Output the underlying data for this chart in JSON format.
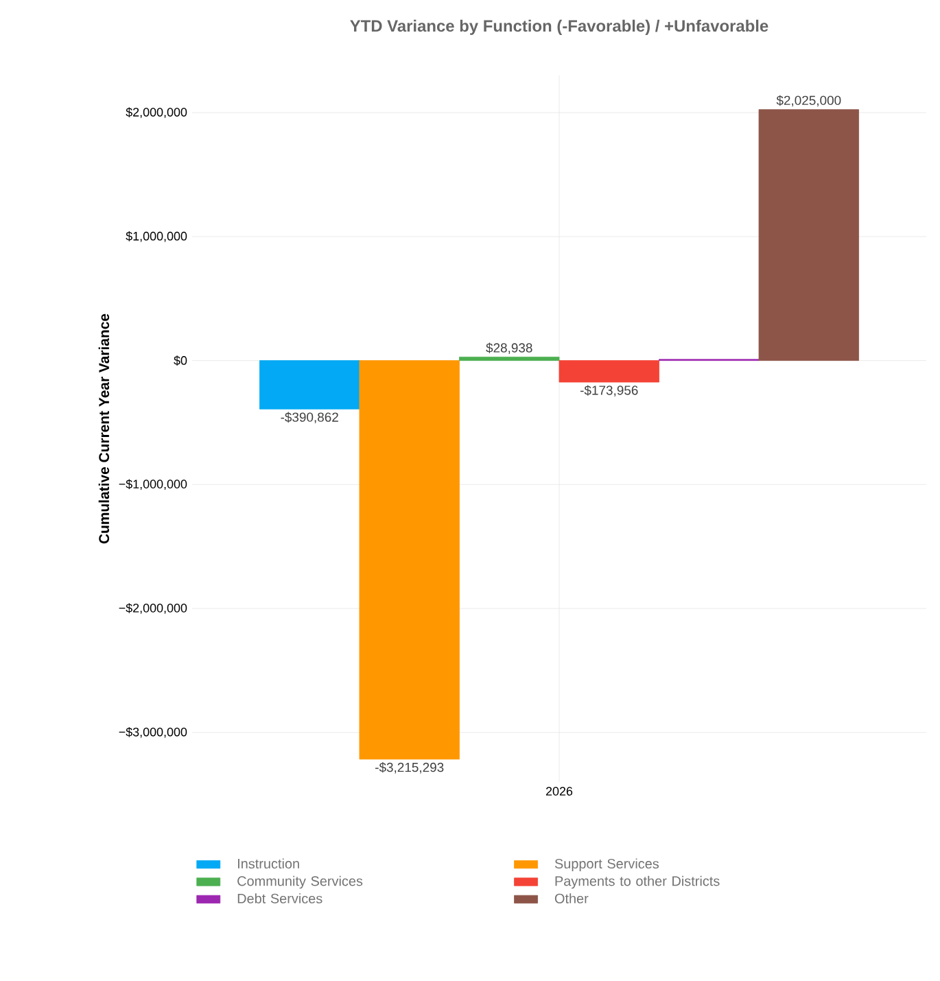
{
  "chart_data": {
    "type": "bar",
    "title": "YTD Variance by Function (-Favorable) / +Unfavorable",
    "ylabel": "Cumulative Current Year Variance",
    "categories": [
      "2026"
    ],
    "series": [
      {
        "name": "Instruction",
        "color": "#03a9f4",
        "values": [
          -390862
        ],
        "value_labels": [
          "-$390,862"
        ]
      },
      {
        "name": "Support Services",
        "color": "#ff9800",
        "values": [
          -3215293
        ],
        "value_labels": [
          "-$3,215,293"
        ]
      },
      {
        "name": "Community Services",
        "color": "#4caf50",
        "values": [
          28938
        ],
        "value_labels": [
          "$28,938"
        ]
      },
      {
        "name": "Payments to other Districts",
        "color": "#f44336",
        "values": [
          -173956
        ],
        "value_labels": [
          "-$173,956"
        ]
      },
      {
        "name": "Debt Services",
        "color": "#9c27b0",
        "values": [
          10000
        ],
        "value_labels": [
          null
        ]
      },
      {
        "name": "Other",
        "color": "#8d5548",
        "values": [
          2025000
        ],
        "value_labels": [
          "$2,025,000"
        ]
      }
    ],
    "ylim": [
      -3400000,
      2300000
    ],
    "yticks": [
      {
        "value": -3000000,
        "label": "−$3,000,000"
      },
      {
        "value": -2000000,
        "label": "−$2,000,000"
      },
      {
        "value": -1000000,
        "label": "−$1,000,000"
      },
      {
        "value": 0,
        "label": "$0"
      },
      {
        "value": 1000000,
        "label": "$1,000,000"
      },
      {
        "value": 2000000,
        "label": "$2,000,000"
      }
    ],
    "grid": true,
    "legend": "bottom"
  }
}
